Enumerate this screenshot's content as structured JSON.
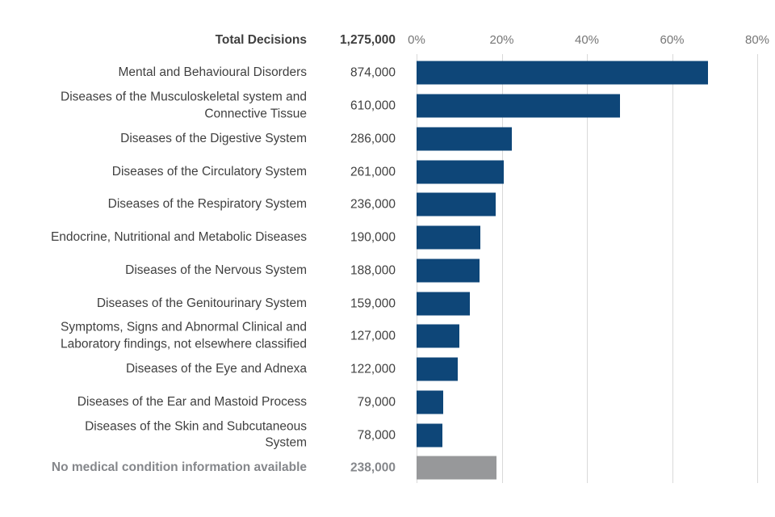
{
  "header": {
    "total_label": "Total Decisions",
    "total_value": "1,275,000"
  },
  "axis": {
    "ticks": [
      "0%",
      "20%",
      "40%",
      "60%",
      "80%"
    ],
    "max_percent": 80
  },
  "colors": {
    "bar_blue": "#0e4678",
    "bar_gray": "#97989a",
    "label_dark": "#404040",
    "label_muted": "#85878b",
    "axis_text": "#767676",
    "gridline": "#d9d9d9"
  },
  "rows": [
    {
      "label": "Mental and Behavioural Disorders",
      "value_display": "874,000",
      "value": 874000,
      "percent": 68.5,
      "style": "blue"
    },
    {
      "label": "Diseases of the Musculoskeletal system and\nConnective Tissue",
      "value_display": "610,000",
      "value": 610000,
      "percent": 47.8,
      "style": "blue"
    },
    {
      "label": "Diseases of the Digestive System",
      "value_display": "286,000",
      "value": 286000,
      "percent": 22.4,
      "style": "blue"
    },
    {
      "label": "Diseases of the Circulatory System",
      "value_display": "261,000",
      "value": 261000,
      "percent": 20.5,
      "style": "blue"
    },
    {
      "label": "Diseases of the Respiratory System",
      "value_display": "236,000",
      "value": 236000,
      "percent": 18.5,
      "style": "blue"
    },
    {
      "label": "Endocrine, Nutritional and Metabolic Diseases",
      "value_display": "190,000",
      "value": 190000,
      "percent": 14.9,
      "style": "blue"
    },
    {
      "label": "Diseases of the Nervous System",
      "value_display": "188,000",
      "value": 188000,
      "percent": 14.7,
      "style": "blue"
    },
    {
      "label": "Diseases of the Genitourinary System",
      "value_display": "159,000",
      "value": 159000,
      "percent": 12.5,
      "style": "blue"
    },
    {
      "label": "Symptoms, Signs and Abnormal Clinical and\nLaboratory findings, not elsewhere classified",
      "value_display": "127,000",
      "value": 127000,
      "percent": 10.0,
      "style": "blue"
    },
    {
      "label": "Diseases of the Eye and Adnexa",
      "value_display": "122,000",
      "value": 122000,
      "percent": 9.6,
      "style": "blue"
    },
    {
      "label": "Diseases of the Ear and Mastoid Process",
      "value_display": "79,000",
      "value": 79000,
      "percent": 6.2,
      "style": "blue"
    },
    {
      "label": "Diseases of the Skin and Subcutaneous\nSystem",
      "value_display": "78,000",
      "value": 78000,
      "percent": 6.1,
      "style": "blue"
    },
    {
      "label": "No medical condition information available",
      "value_display": "238,000",
      "value": 238000,
      "percent": 18.7,
      "style": "gray"
    }
  ],
  "chart_data": {
    "type": "bar",
    "orientation": "horizontal",
    "title": "",
    "total_label": "Total Decisions",
    "total": 1275000,
    "categories": [
      "Mental and Behavioural Disorders",
      "Diseases of the Musculoskeletal system and Connective Tissue",
      "Diseases of the Digestive System",
      "Diseases of the Circulatory System",
      "Diseases of the Respiratory System",
      "Endocrine, Nutritional and Metabolic Diseases",
      "Diseases of the Nervous System",
      "Diseases of the Genitourinary System",
      "Symptoms, Signs and Abnormal Clinical and Laboratory findings, not elsewhere classified",
      "Diseases of the Eye and Adnexa",
      "Diseases of the Ear and Mastoid Process",
      "Diseases of the Skin and Subcutaneous System",
      "No medical condition information available"
    ],
    "values": [
      874000,
      610000,
      286000,
      261000,
      236000,
      190000,
      188000,
      159000,
      127000,
      122000,
      79000,
      78000,
      238000
    ],
    "percent_of_total": [
      68.5,
      47.8,
      22.4,
      20.5,
      18.5,
      14.9,
      14.7,
      12.5,
      10.0,
      9.6,
      6.2,
      6.1,
      18.7
    ],
    "xlabel": "",
    "ylabel": "",
    "xlim": [
      0,
      80
    ],
    "xticks": [
      "0%",
      "20%",
      "40%",
      "60%",
      "80%"
    ],
    "grid": true,
    "legend": false
  }
}
